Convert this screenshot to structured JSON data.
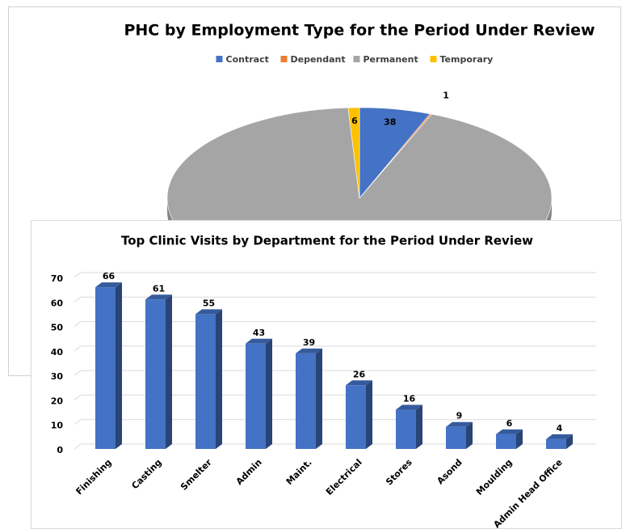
{
  "chart_data": [
    {
      "type": "pie",
      "title": "PHC by Employment Type for the Period Under Review",
      "categories": [
        "Contract",
        "Dependant",
        "Permanent",
        "Temporary"
      ],
      "values": [
        38,
        1,
        590,
        6
      ],
      "colors": [
        "#4472c4",
        "#ed7d31",
        "#a5a5a5",
        "#ffc000"
      ],
      "legend": "top"
    },
    {
      "type": "bar",
      "title": "Top Clinic Visits by Department for the Period Under Review",
      "categories": [
        "Finishing",
        "Casting",
        "Smelter",
        "Admin",
        "Maint.",
        "Electrical",
        "Stores",
        "Asond",
        "Moulding",
        "Admin Head Office"
      ],
      "values": [
        66,
        61,
        55,
        43,
        39,
        26,
        16,
        9,
        6,
        4
      ],
      "color": "#4472c4",
      "ylim": [
        0,
        70
      ],
      "yticks": [
        0,
        10,
        20,
        30,
        40,
        50,
        60,
        70
      ],
      "grid": true
    }
  ]
}
